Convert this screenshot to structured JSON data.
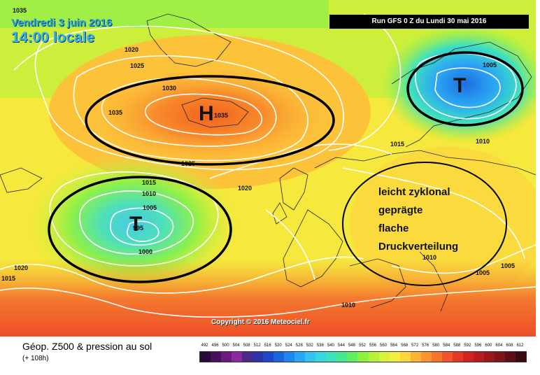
{
  "map": {
    "date": "Vendredi 3 juin 2016",
    "time": "14:00 locale",
    "run": "Run GFS 0 Z du Lundi 30 mai 2016",
    "copyright": "Copyright © 2016 Meteociel.fr",
    "centers": [
      {
        "symbol": "H",
        "type": "high",
        "label": "1035"
      },
      {
        "symbol": "T",
        "type": "low",
        "label": "995"
      },
      {
        "symbol": "T",
        "type": "low",
        "label": "1005"
      }
    ],
    "isobar_labels": [
      "1035",
      "1020",
      "1025",
      "1030",
      "1035",
      "1035",
      "1025",
      "1020",
      "1015",
      "1010",
      "1005",
      "995",
      "1000",
      "1020",
      "1015",
      "1005",
      "1015",
      "1010",
      "1010",
      "1005",
      "1005",
      "1010"
    ],
    "annotation": [
      "leicht  zyklonal",
      "geprägte",
      "flache",
      "Druckverteilung"
    ]
  },
  "legend": {
    "title": "Géop. Z500 & pression au sol",
    "subtitle": "(+ 108h)",
    "scale_values": [
      "492",
      "496",
      "500",
      "504",
      "508",
      "512",
      "516",
      "520",
      "524",
      "528",
      "532",
      "536",
      "540",
      "544",
      "548",
      "552",
      "556",
      "560",
      "564",
      "568",
      "572",
      "576",
      "580",
      "584",
      "588",
      "592",
      "596",
      "600",
      "604",
      "608",
      "612"
    ],
    "scale_colors": [
      "#2a0b38",
      "#4a0f5c",
      "#6b1a80",
      "#8a2aa0",
      "#4b2a8a",
      "#2c35a6",
      "#1e48c8",
      "#1a66e0",
      "#1f86f0",
      "#2aa6f4",
      "#36c2f0",
      "#3ad6e0",
      "#3ee0c0",
      "#48e890",
      "#62ee62",
      "#8cf23e",
      "#b6f23a",
      "#daf23c",
      "#f4ee3c",
      "#fcd63a",
      "#fcb436",
      "#fa9432",
      "#f6742e",
      "#f0542a",
      "#e43826",
      "#d22222",
      "#b81c20",
      "#9c161e",
      "#80121c",
      "#5e0e16",
      "#3a0a0e"
    ]
  }
}
